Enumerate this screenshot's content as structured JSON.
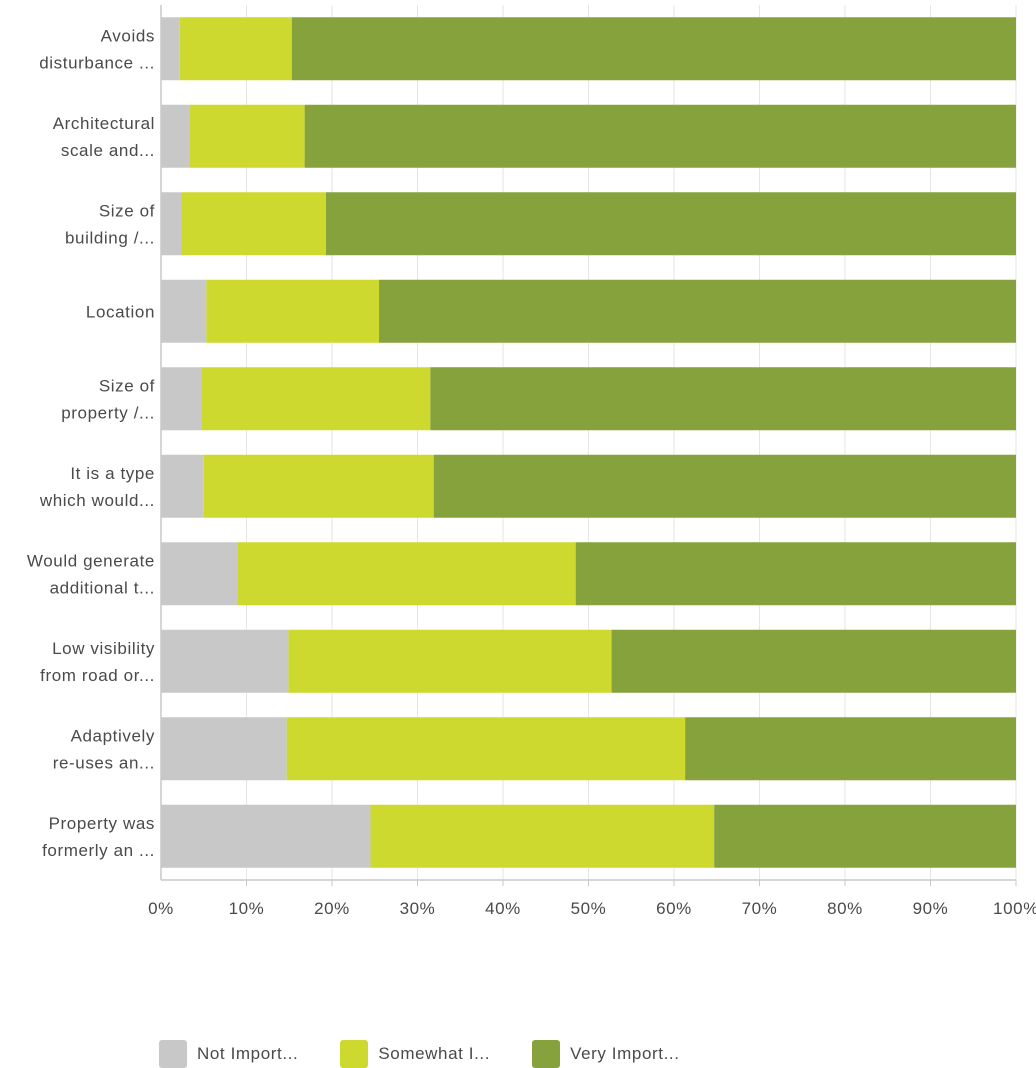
{
  "chart_data": {
    "type": "bar",
    "orientation": "horizontal",
    "stacked": "percent",
    "categories": [
      [
        "Avoids",
        "disturbance ..."
      ],
      [
        "Architectural",
        "scale and..."
      ],
      [
        "Size of",
        "building /..."
      ],
      [
        "Location"
      ],
      [
        "Size of",
        "property /..."
      ],
      [
        "It is a type",
        "which would..."
      ],
      [
        "Would generate",
        "additional t..."
      ],
      [
        "Low visibility",
        "from road or..."
      ],
      [
        "Adaptively",
        "re-uses an..."
      ],
      [
        "Property was",
        "formerly an ..."
      ]
    ],
    "series": [
      {
        "name": "Not Import...",
        "color": "#c8c8c8",
        "values": [
          2.2,
          3.3,
          2.4,
          5.3,
          4.7,
          5.0,
          8.9,
          14.9,
          14.7,
          24.5
        ]
      },
      {
        "name": "Somewhat I...",
        "color": "#cdd92f",
        "values": [
          13.1,
          13.5,
          16.9,
          20.2,
          26.8,
          26.9,
          39.6,
          37.8,
          46.6,
          40.2
        ]
      },
      {
        "name": "Very Import...",
        "color": "#86a23c",
        "values": [
          84.7,
          83.2,
          80.7,
          74.5,
          68.5,
          68.1,
          51.5,
          47.3,
          38.7,
          35.3
        ]
      }
    ],
    "x_ticks": [
      "0%",
      "10%",
      "20%",
      "30%",
      "40%",
      "50%",
      "60%",
      "70%",
      "80%",
      "90%",
      "100%"
    ],
    "xlim": [
      0,
      100
    ],
    "grid": true,
    "legend_position": "bottom"
  }
}
